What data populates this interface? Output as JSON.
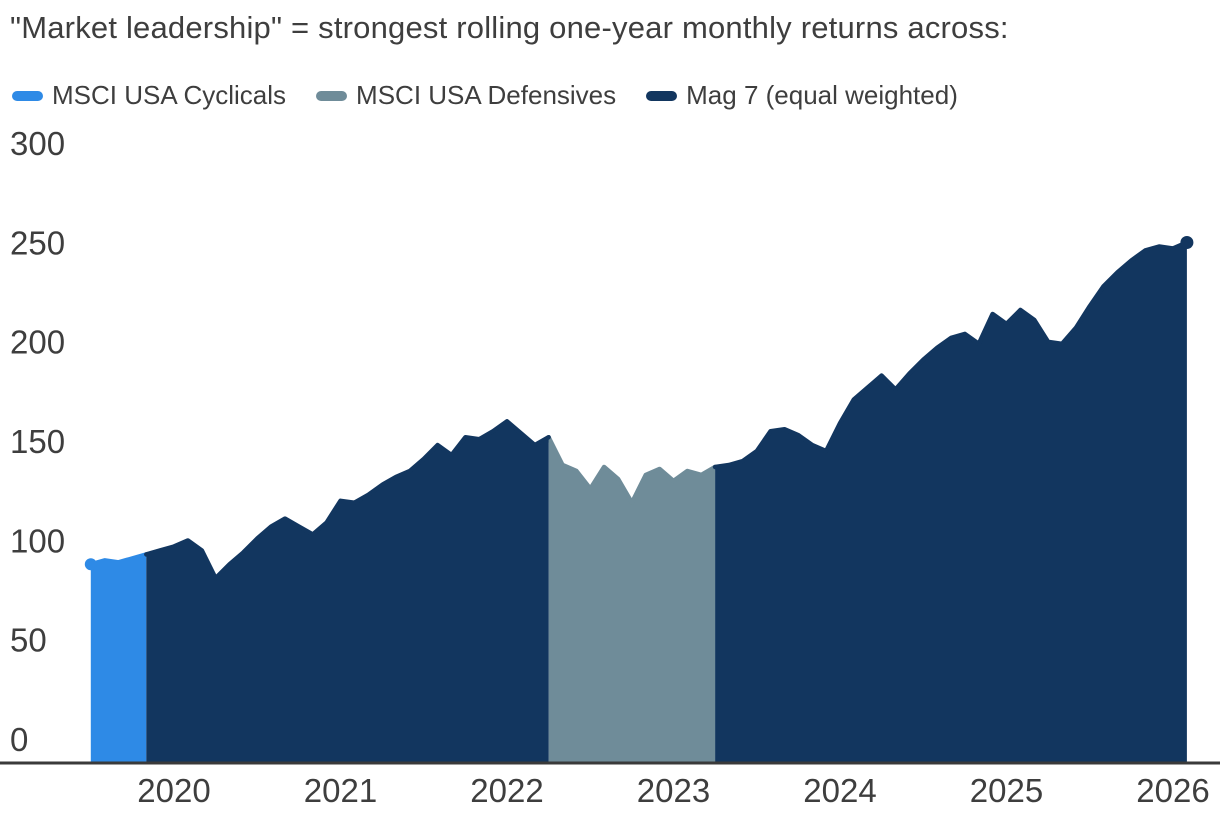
{
  "title": "\"Market leadership\" = strongest rolling one-year monthly returns across:",
  "colors": {
    "cyclicals": "#2E8AE6",
    "defensives": "#6F8C99",
    "mag7": "#12365F",
    "text": "#3E3E3E",
    "axis_line": "#3A3A3A",
    "background": "#FFFFFF"
  },
  "legend": {
    "position": "top",
    "items": [
      {
        "label": "MSCI USA Cyclicals",
        "color_key": "cyclicals"
      },
      {
        "label": "MSCI USA Defensives",
        "color_key": "defensives"
      },
      {
        "label": "Mag 7 (equal weighted)",
        "color_key": "mag7"
      }
    ]
  },
  "chart_data": {
    "type": "area",
    "title": "\"Market leadership\" = strongest rolling one-year monthly returns across:",
    "xlabel": "",
    "ylabel": "",
    "ylim": [
      0,
      300
    ],
    "y_ticks": [
      0,
      50,
      100,
      150,
      200,
      250,
      300
    ],
    "x_ticks": [
      "2020",
      "2021",
      "2022",
      "2023",
      "2024",
      "2025",
      "2026"
    ],
    "grid": false,
    "frequency": "monthly",
    "start_month": "2019-07",
    "end_month": "2026-02",
    "index_base": 100,
    "values": [
      100,
      102,
      101,
      103,
      105,
      107,
      109,
      112,
      107,
      93,
      100,
      106,
      113,
      119,
      123,
      119,
      115,
      121,
      132,
      131,
      135,
      140,
      144,
      147,
      153,
      160,
      155,
      164,
      163,
      167,
      172,
      166,
      160,
      164,
      150,
      147,
      138,
      149,
      143,
      131,
      145,
      148,
      142,
      147,
      145,
      149,
      150,
      152,
      157,
      167,
      168,
      165,
      160,
      157,
      171,
      183,
      189,
      195,
      188,
      196,
      203,
      209,
      214,
      216,
      211,
      226,
      221,
      228,
      223,
      212,
      211,
      219,
      230,
      240,
      247,
      253,
      258,
      260,
      259,
      262
    ],
    "leader_segments": [
      {
        "leader": "MSCI USA Cyclicals",
        "color_key": "cyclicals",
        "from": "2019-07",
        "to": "2019-11",
        "from_index": 0,
        "to_index": 4
      },
      {
        "leader": "Mag 7 (equal weighted)",
        "color_key": "mag7",
        "from": "2019-11",
        "to": "2022-04",
        "from_index": 4,
        "to_index": 33
      },
      {
        "leader": "MSCI USA Defensives",
        "color_key": "defensives",
        "from": "2022-04",
        "to": "2023-04",
        "from_index": 33,
        "to_index": 45
      },
      {
        "leader": "Mag 7 (equal weighted)",
        "color_key": "mag7",
        "from": "2023-04",
        "to": "2026-02",
        "from_index": 45,
        "to_index": 79
      }
    ],
    "markers": {
      "start_dot": true,
      "end_dot": true
    }
  }
}
